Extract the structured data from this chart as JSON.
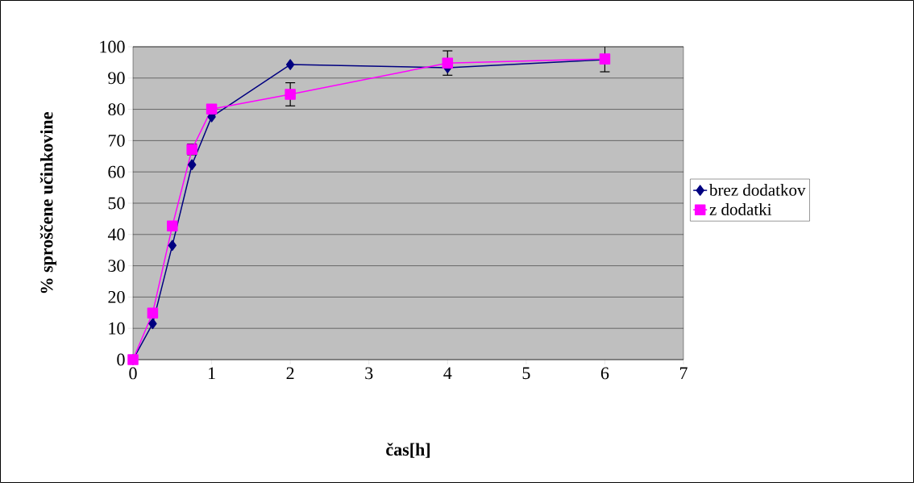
{
  "chart_data": {
    "type": "line",
    "xlabel": "čas[h]",
    "ylabel": "% sproščene učinkovine",
    "x": [
      0,
      0.25,
      0.5,
      0.75,
      1,
      2,
      4,
      6
    ],
    "series": [
      {
        "name": "brez dodatkov",
        "color": "#000080",
        "marker": "diamond",
        "values": [
          0,
          11.5,
          36.5,
          62.3,
          77.6,
          94.3,
          93.3,
          95.9
        ]
      },
      {
        "name": "z dodatki",
        "color": "#ff00ff",
        "marker": "square",
        "values": [
          0,
          14.9,
          42.7,
          67.2,
          80.1,
          84.8,
          94.8,
          96.1
        ],
        "errors": [
          null,
          null,
          null,
          1.7,
          null,
          3.7,
          3.9,
          4.1
        ]
      }
    ],
    "xlim": [
      0,
      7
    ],
    "xticks": [
      0,
      1,
      2,
      3,
      4,
      5,
      6,
      7
    ],
    "ylim": [
      0,
      100
    ],
    "yticks": [
      0,
      10,
      20,
      30,
      40,
      50,
      60,
      70,
      80,
      90,
      100
    ],
    "grid": "y",
    "legend": "right",
    "line_style": "solid"
  }
}
